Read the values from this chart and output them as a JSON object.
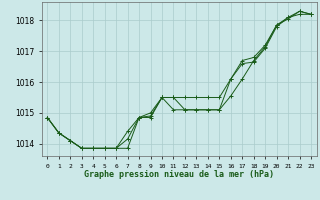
{
  "title": "Graphe pression niveau de la mer (hPa)",
  "background_color": "#cce8e8",
  "grid_color": "#aacccc",
  "line_color": "#1a5c1a",
  "marker_color": "#1a5c1a",
  "x_labels": [
    "0",
    "1",
    "2",
    "3",
    "4",
    "5",
    "6",
    "7",
    "8",
    "9",
    "10",
    "11",
    "12",
    "13",
    "14",
    "15",
    "16",
    "17",
    "18",
    "19",
    "20",
    "21",
    "22",
    "23"
  ],
  "ylim": [
    1013.6,
    1018.6
  ],
  "yticks": [
    1014,
    1015,
    1016,
    1017,
    1018
  ],
  "series": [
    [
      1014.85,
      1014.35,
      1014.1,
      1013.85,
      1013.85,
      1013.85,
      1013.85,
      1013.85,
      1014.85,
      1014.85,
      1015.5,
      1015.1,
      1015.1,
      1015.1,
      1015.1,
      1015.1,
      1016.1,
      1016.7,
      1016.8,
      1017.2,
      1017.85,
      1018.1,
      1018.3,
      1018.2
    ],
    [
      1014.85,
      1014.35,
      1014.1,
      1013.85,
      1013.85,
      1013.85,
      1013.85,
      1014.15,
      1014.85,
      1014.9,
      1015.5,
      1015.5,
      1015.1,
      1015.1,
      1015.1,
      1015.1,
      1015.55,
      1016.1,
      1016.7,
      1017.15,
      1017.85,
      1018.05,
      1018.3,
      1018.2
    ],
    [
      1014.85,
      1014.35,
      1014.1,
      1013.85,
      1013.85,
      1013.85,
      1013.85,
      1014.4,
      1014.85,
      1015.0,
      1015.5,
      1015.5,
      1015.5,
      1015.5,
      1015.5,
      1015.5,
      1016.1,
      1016.6,
      1016.65,
      1017.1,
      1017.8,
      1018.1,
      1018.2,
      1018.2
    ]
  ]
}
